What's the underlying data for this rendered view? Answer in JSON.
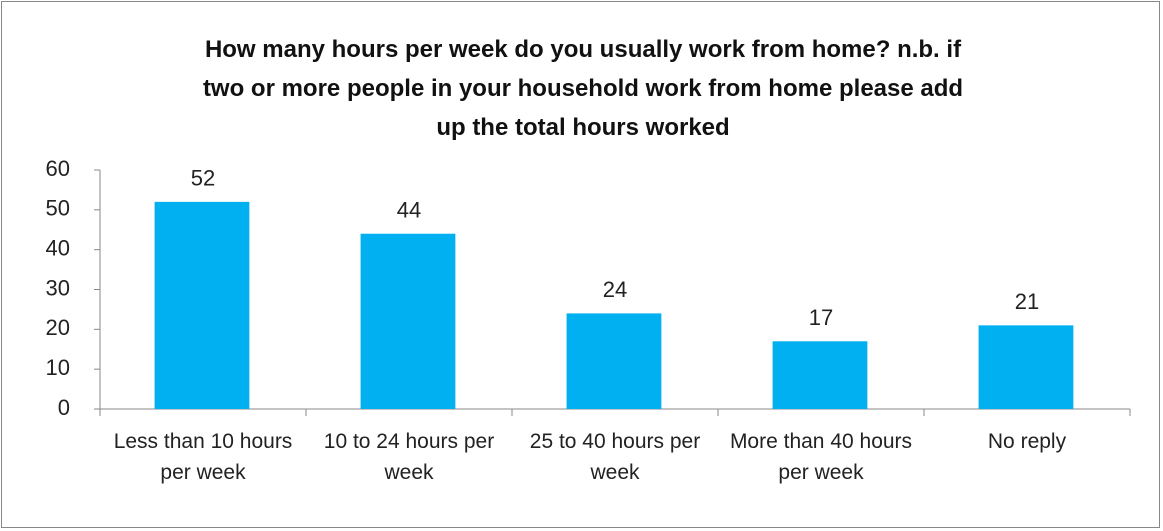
{
  "chart_data": {
    "type": "bar",
    "title": "How many hours per week do you usually work from home? n.b. if two or more people in your household work from home please add up the total hours worked",
    "categories": [
      "Less than 10 hours per week",
      "10 to 24 hours per week",
      "25 to 40 hours per week",
      "More than 40 hours per week",
      "No reply"
    ],
    "values": [
      52,
      44,
      24,
      17,
      21
    ],
    "color": "#00b0f0",
    "ylim": [
      0,
      60
    ],
    "yticks": [
      0,
      10,
      20,
      30,
      40,
      50,
      60
    ],
    "grid": false
  }
}
